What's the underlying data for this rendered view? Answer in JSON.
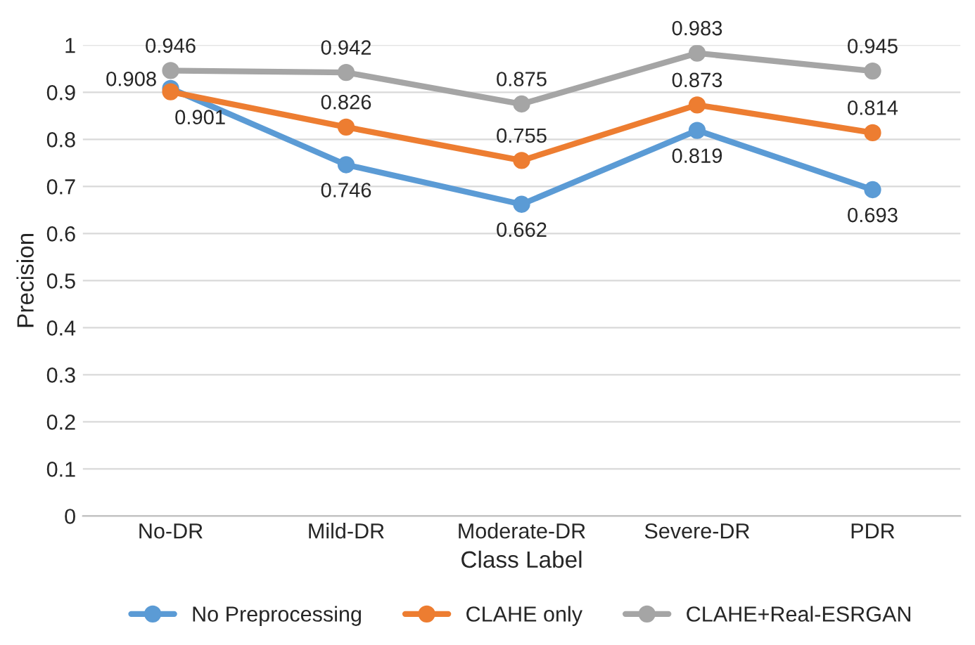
{
  "chart_data": {
    "type": "line",
    "xlabel": "Class Label",
    "ylabel": "Precision",
    "categories": [
      "No-DR",
      "Mild-DR",
      "Moderate-DR",
      "Severe-DR",
      "PDR"
    ],
    "series": [
      {
        "name": "No Preprocessing",
        "color": "#5b9bd5",
        "values": [
          0.908,
          0.746,
          0.662,
          0.819,
          0.693
        ]
      },
      {
        "name": "CLAHE only",
        "color": "#ed7d31",
        "values": [
          0.901,
          0.826,
          0.755,
          0.873,
          0.814
        ]
      },
      {
        "name": "CLAHE+Real-ESRGAN",
        "color": "#a5a5a5",
        "values": [
          0.946,
          0.942,
          0.875,
          0.983,
          0.945
        ]
      }
    ],
    "ylim": [
      0,
      1
    ],
    "yticks": [
      {
        "value": 0,
        "label": "0"
      },
      0.1,
      0.2,
      0.3,
      0.4,
      0.5,
      0.6,
      0.7,
      0.8,
      0.9,
      {
        "value": 1,
        "label": "1"
      }
    ],
    "grid": "y",
    "legend": "bottom",
    "marker": "circle",
    "line_style": "solid",
    "data_labels": true
  }
}
